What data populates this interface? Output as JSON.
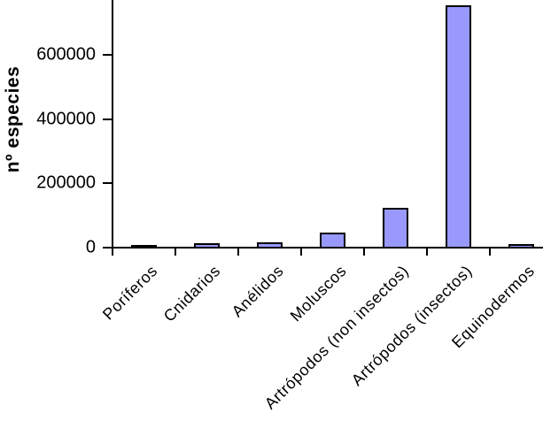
{
  "chart_data": {
    "type": "bar",
    "title": "",
    "xlabel": "",
    "ylabel": "nº especies",
    "categories": [
      "Poríferos",
      "Cnidarios",
      "Anélidos",
      "Moluscos",
      "Artrópodos (non insectos)",
      "Artrópodos (insectos)",
      "Equinodermos"
    ],
    "values": [
      5000,
      10000,
      15000,
      45000,
      120000,
      750000,
      7000
    ],
    "y_ticks": [
      0,
      200000,
      400000,
      600000
    ],
    "y_tick_labels": [
      "0",
      "200000",
      "400000",
      "600000"
    ],
    "ylim": [
      0,
      770000
    ],
    "grid": false,
    "legend": "none",
    "x_label_rotation_deg": -45,
    "colors": {
      "bar_fill": "#9999FC",
      "bar_border": "#000000",
      "axis": "#000000",
      "text": "#000000",
      "background": "#FFFFFF"
    }
  }
}
